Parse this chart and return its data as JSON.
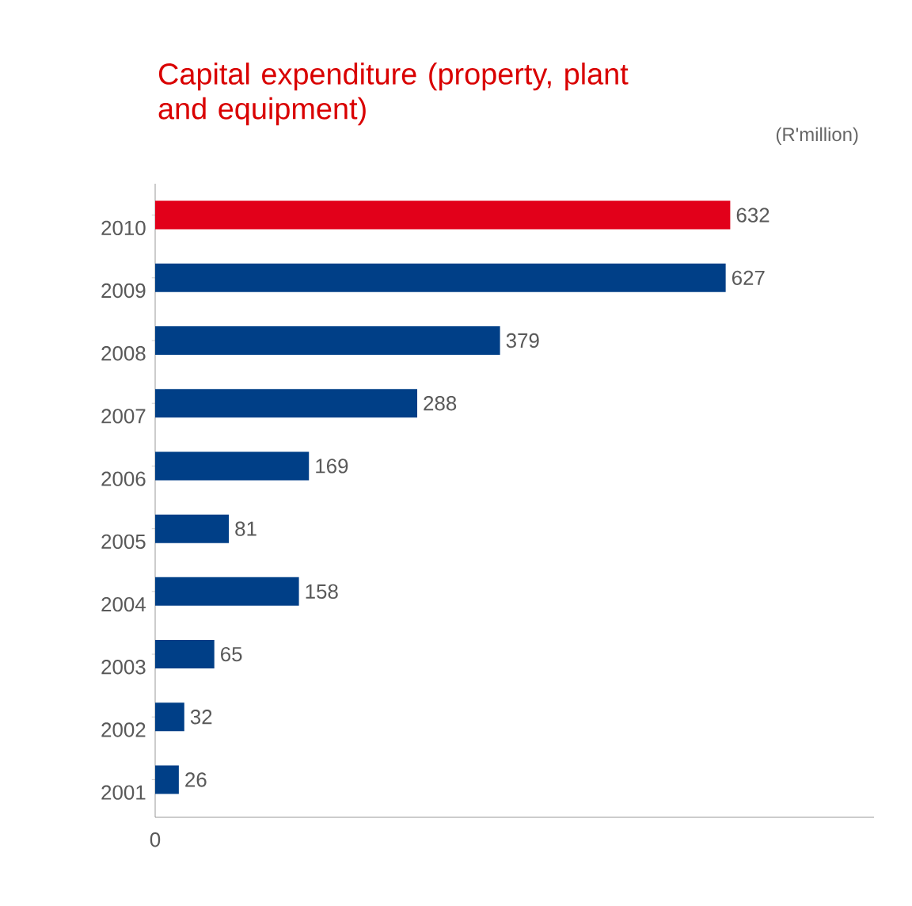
{
  "chart_data": {
    "type": "bar",
    "orientation": "horizontal",
    "title": "Capital expenditure (property, plant and equipment)",
    "subtitle": "(R'million)",
    "categories": [
      "2010",
      "2009",
      "2008",
      "2007",
      "2006",
      "2005",
      "2004",
      "2003",
      "2002",
      "2001"
    ],
    "values": [
      632,
      627,
      379,
      288,
      169,
      81,
      158,
      65,
      32,
      26
    ],
    "colors": [
      "#e2001a",
      "#003f87",
      "#003f87",
      "#003f87",
      "#003f87",
      "#003f87",
      "#003f87",
      "#003f87",
      "#003f87",
      "#003f87"
    ],
    "data_labels": true,
    "annotations": [
      "0"
    ]
  }
}
